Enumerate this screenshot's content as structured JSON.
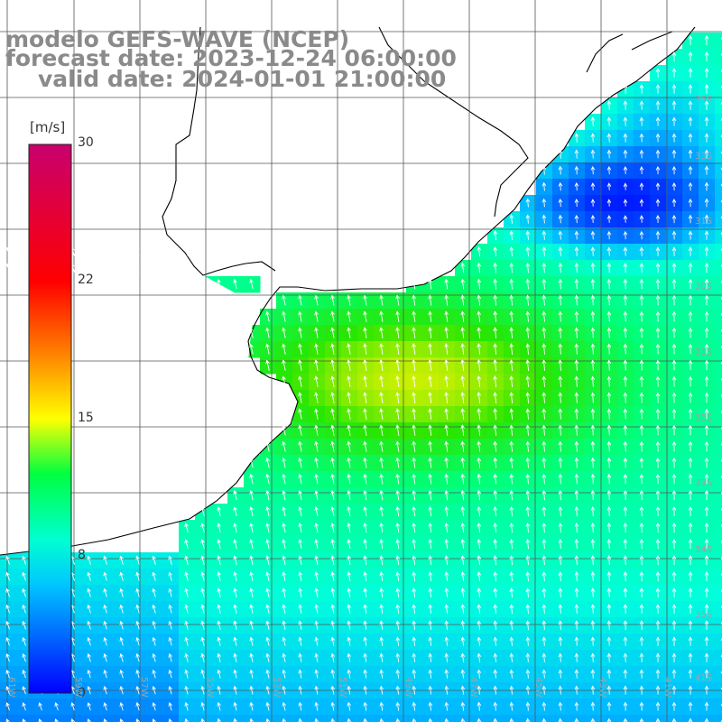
{
  "title": {
    "line1": "modelo GEFS-WAVE (NCEP)",
    "line2": "forecast date: 2023-12-24 06:00:00",
    "line3": "valid date: 2024-01-01 21:00:00"
  },
  "colorbar": {
    "unit": "[m/s]",
    "min": 0,
    "max": 30,
    "ticks": [
      {
        "value": 30,
        "label": "30"
      },
      {
        "value": 22,
        "label": "22"
      },
      {
        "value": 15,
        "label": "15"
      },
      {
        "value": 8,
        "label": "8"
      },
      {
        "value": 0,
        "label": "0"
      }
    ],
    "colors": [
      "#0000ff",
      "#00c8ff",
      "#00ffa0",
      "#00ff00",
      "#ffff00",
      "#ff8000",
      "#ff0000",
      "#c8006e"
    ]
  },
  "map": {
    "land_color": "#ffffff",
    "coast_color": "#000000",
    "grid_color": "#555555",
    "arrow_color": "#ffffff",
    "lon_labels": [
      "61W",
      "59W",
      "57W",
      "55W",
      "53W",
      "51W",
      "49W",
      "47W",
      "45W",
      "43W",
      "41W"
    ],
    "lat_labels": [
      "35S",
      "33S",
      "31S",
      "30S",
      "31S",
      "32S",
      "33S",
      "34S",
      "35S",
      "41S"
    ]
  }
}
